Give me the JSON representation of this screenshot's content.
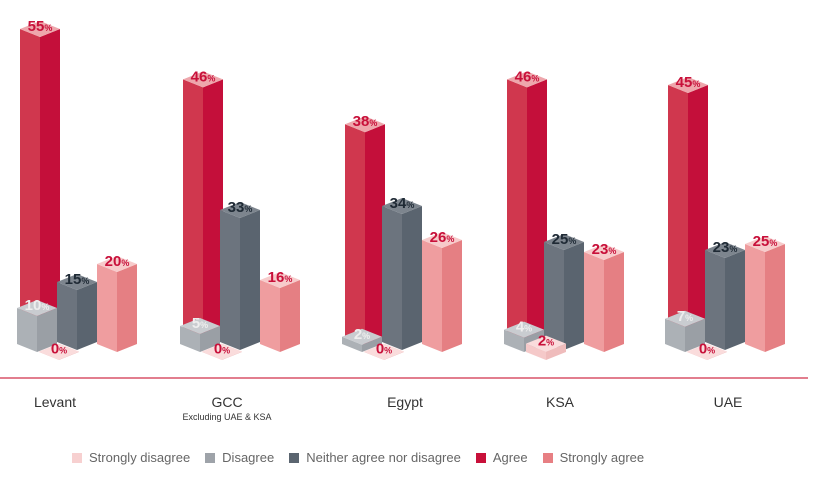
{
  "chart_data": {
    "type": "bar",
    "style": "3d-grouped",
    "categories": [
      "Levant",
      "GCC",
      "Egypt",
      "KSA",
      "UAE"
    ],
    "category_sublabels": [
      "",
      "Excluding UAE & KSA",
      "",
      "",
      ""
    ],
    "value_suffix": "%",
    "series": [
      {
        "name": "Strongly disagree",
        "color": "#f7d0d0",
        "values": [
          0,
          0,
          0,
          2,
          0
        ]
      },
      {
        "name": "Disagree",
        "color": "#9ea3a9",
        "values": [
          10,
          5,
          2,
          4,
          7
        ]
      },
      {
        "name": "Neither agree nor disagree",
        "color": "#5b6570",
        "values": [
          15,
          33,
          34,
          25,
          23
        ]
      },
      {
        "name": "Agree",
        "color": "#c8103a",
        "values": [
          55,
          46,
          38,
          46,
          45
        ]
      },
      {
        "name": "Strongly agree",
        "color": "#e77f83",
        "values": [
          20,
          16,
          26,
          23,
          25
        ]
      }
    ],
    "legend_position": "bottom",
    "grid": false,
    "axis_color": "#d0304a"
  }
}
